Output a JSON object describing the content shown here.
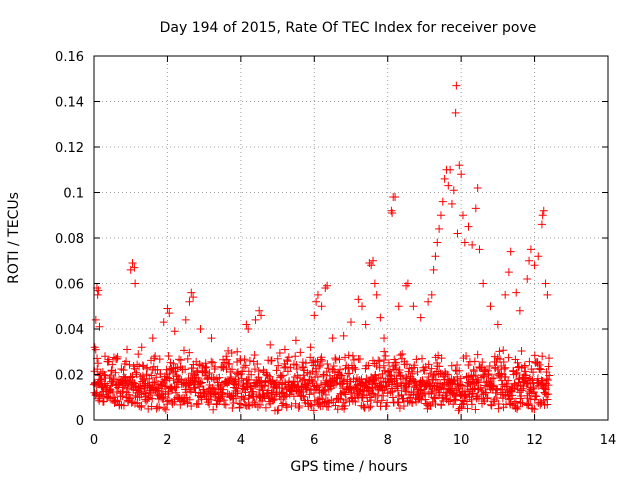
{
  "chart_data": {
    "type": "scatter",
    "title": "Day 194 of 2015, Rate Of TEC Index for receiver pove",
    "xlabel": "GPS time / hours",
    "ylabel": "ROTI / TECUs",
    "xlim": [
      0,
      14
    ],
    "ylim": [
      0,
      0.16
    ],
    "xticks": [
      0,
      2,
      4,
      6,
      8,
      10,
      12,
      14
    ],
    "xtick_labels": [
      "0",
      "2",
      "4",
      "6",
      "8",
      "10",
      "12",
      "14"
    ],
    "yticks": [
      0,
      0.02,
      0.04,
      0.06,
      0.08,
      0.1,
      0.12,
      0.14,
      0.16
    ],
    "ytick_labels": [
      "0",
      "0.02",
      "0.04",
      "0.06",
      "0.08",
      "0.1",
      "0.12",
      "0.14",
      "0.16"
    ],
    "grid": true,
    "marker": "+",
    "color": "#ff0000",
    "series": [
      {
        "name": "ROTI",
        "points": [
          [
            0.02,
            0.032
          ],
          [
            0.05,
            0.044
          ],
          [
            0.08,
            0.058
          ],
          [
            0.1,
            0.055
          ],
          [
            0.12,
            0.057
          ],
          [
            0.15,
            0.041
          ],
          [
            0.3,
            0.028
          ],
          [
            0.6,
            0.027
          ],
          [
            0.9,
            0.031
          ],
          [
            1.0,
            0.066
          ],
          [
            1.05,
            0.069
          ],
          [
            1.1,
            0.067
          ],
          [
            1.12,
            0.06
          ],
          [
            1.3,
            0.032
          ],
          [
            1.6,
            0.036
          ],
          [
            1.9,
            0.043
          ],
          [
            2.0,
            0.049
          ],
          [
            2.05,
            0.047
          ],
          [
            2.2,
            0.039
          ],
          [
            2.5,
            0.044
          ],
          [
            2.6,
            0.052
          ],
          [
            2.65,
            0.056
          ],
          [
            2.7,
            0.054
          ],
          [
            2.9,
            0.04
          ],
          [
            3.2,
            0.036
          ],
          [
            3.6,
            0.028
          ],
          [
            3.9,
            0.03
          ],
          [
            4.15,
            0.042
          ],
          [
            4.2,
            0.04
          ],
          [
            4.4,
            0.044
          ],
          [
            4.5,
            0.048
          ],
          [
            4.55,
            0.046
          ],
          [
            4.8,
            0.033
          ],
          [
            5.2,
            0.031
          ],
          [
            5.5,
            0.035
          ],
          [
            5.7,
            0.023
          ],
          [
            5.9,
            0.032
          ],
          [
            6.0,
            0.046
          ],
          [
            6.05,
            0.052
          ],
          [
            6.1,
            0.055
          ],
          [
            6.2,
            0.05
          ],
          [
            6.3,
            0.058
          ],
          [
            6.35,
            0.059
          ],
          [
            6.5,
            0.036
          ],
          [
            6.8,
            0.037
          ],
          [
            7.0,
            0.043
          ],
          [
            7.2,
            0.053
          ],
          [
            7.3,
            0.05
          ],
          [
            7.4,
            0.042
          ],
          [
            7.5,
            0.069
          ],
          [
            7.55,
            0.068
          ],
          [
            7.6,
            0.07
          ],
          [
            7.65,
            0.06
          ],
          [
            7.7,
            0.055
          ],
          [
            7.8,
            0.045
          ],
          [
            7.9,
            0.036
          ],
          [
            8.1,
            0.092
          ],
          [
            8.12,
            0.091
          ],
          [
            8.15,
            0.098
          ],
          [
            8.2,
            0.098
          ],
          [
            8.3,
            0.05
          ],
          [
            8.5,
            0.059
          ],
          [
            8.55,
            0.06
          ],
          [
            8.7,
            0.05
          ],
          [
            8.9,
            0.045
          ],
          [
            9.1,
            0.052
          ],
          [
            9.2,
            0.055
          ],
          [
            9.25,
            0.066
          ],
          [
            9.3,
            0.072
          ],
          [
            9.35,
            0.078
          ],
          [
            9.4,
            0.084
          ],
          [
            9.45,
            0.09
          ],
          [
            9.5,
            0.096
          ],
          [
            9.55,
            0.106
          ],
          [
            9.6,
            0.11
          ],
          [
            9.65,
            0.103
          ],
          [
            9.7,
            0.11
          ],
          [
            9.75,
            0.095
          ],
          [
            9.8,
            0.101
          ],
          [
            9.85,
            0.135
          ],
          [
            9.87,
            0.147
          ],
          [
            9.9,
            0.082
          ],
          [
            9.95,
            0.112
          ],
          [
            10.0,
            0.108
          ],
          [
            10.05,
            0.09
          ],
          [
            10.1,
            0.078
          ],
          [
            10.2,
            0.085
          ],
          [
            10.3,
            0.077
          ],
          [
            10.4,
            0.093
          ],
          [
            10.45,
            0.102
          ],
          [
            10.5,
            0.075
          ],
          [
            10.6,
            0.06
          ],
          [
            10.8,
            0.05
          ],
          [
            11.0,
            0.042
          ],
          [
            11.2,
            0.055
          ],
          [
            11.3,
            0.065
          ],
          [
            11.35,
            0.074
          ],
          [
            11.5,
            0.056
          ],
          [
            11.6,
            0.048
          ],
          [
            11.8,
            0.062
          ],
          [
            11.85,
            0.07
          ],
          [
            11.9,
            0.075
          ],
          [
            12.0,
            0.068
          ],
          [
            12.1,
            0.072
          ],
          [
            12.2,
            0.086
          ],
          [
            12.22,
            0.09
          ],
          [
            12.25,
            0.092
          ],
          [
            12.3,
            0.06
          ],
          [
            12.35,
            0.055
          ]
        ],
        "dense_band": {
          "x_range": [
            0,
            12.4
          ],
          "typical_low": 0.004,
          "typical_high": 0.032,
          "description": "dense cloud of ROTI values"
        }
      }
    ]
  }
}
